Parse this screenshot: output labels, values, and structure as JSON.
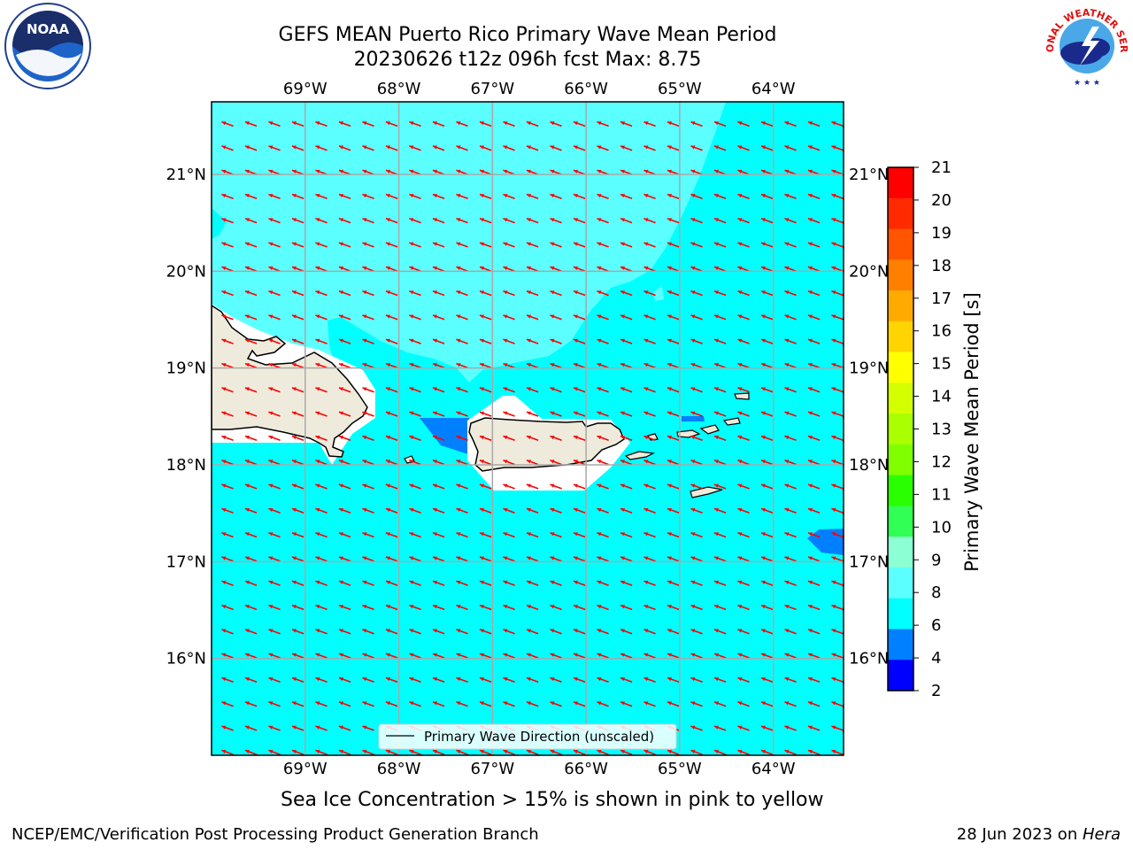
{
  "title": {
    "line1": "GEFS MEAN Puerto Rico Primary Wave Mean Period",
    "line2": "20230626 t12z 096h fcst   Max: 8.75"
  },
  "map": {
    "lon_range": [
      -70.0,
      -63.25
    ],
    "lat_range": [
      15.0,
      21.75
    ],
    "lon_ticks": [
      -69,
      -68,
      -67,
      -66,
      -65,
      -64
    ],
    "lon_tick_labels": [
      "69°W",
      "68°W",
      "67°W",
      "66°W",
      "65°W",
      "64°W"
    ],
    "lat_ticks": [
      16,
      17,
      18,
      19,
      20,
      21
    ],
    "lat_tick_labels": [
      "16°N",
      "17°N",
      "18°N",
      "19°N",
      "20°N",
      "21°N"
    ],
    "gridlines": true,
    "base_fill_color": "#00ffff",
    "lighter_fill_color": "#5cffff",
    "blue_fill_color": "#0080ff",
    "land_color": "#efebdc",
    "arrow_color": "#ff0000",
    "arrow_direction_deg": 290
  },
  "legend": {
    "label": "Primary Wave Direction (unscaled)",
    "location": "lower center"
  },
  "colorbar": {
    "title": "Primary Wave Mean Period [s]",
    "ticks": [
      "21",
      "20",
      "19",
      "18",
      "17",
      "16",
      "15",
      "14",
      "13",
      "12",
      "11",
      "10",
      "9",
      "8",
      "6",
      "4",
      "2"
    ],
    "colors_top_to_bottom": [
      "#ff0000",
      "#ff2a00",
      "#ff5500",
      "#ff7f00",
      "#ffaa00",
      "#ffd400",
      "#ffff00",
      "#d4ff00",
      "#aaff00",
      "#7fff00",
      "#2aff00",
      "#32ff55",
      "#8dffd4",
      "#5cffff",
      "#00ffff",
      "#0080ff",
      "#0000ff"
    ]
  },
  "logos": {
    "noaa_text": "NOAA",
    "nws_text": "NATIONAL WEATHER SERVICE"
  },
  "caption": "Sea Ice Concentration > 15% is shown in pink to yellow",
  "footer": {
    "left": "NCEP/EMC/Verification Post Processing Product Generation Branch",
    "right_prefix": "28 Jun 2023 on ",
    "right_italic": "Hera"
  }
}
